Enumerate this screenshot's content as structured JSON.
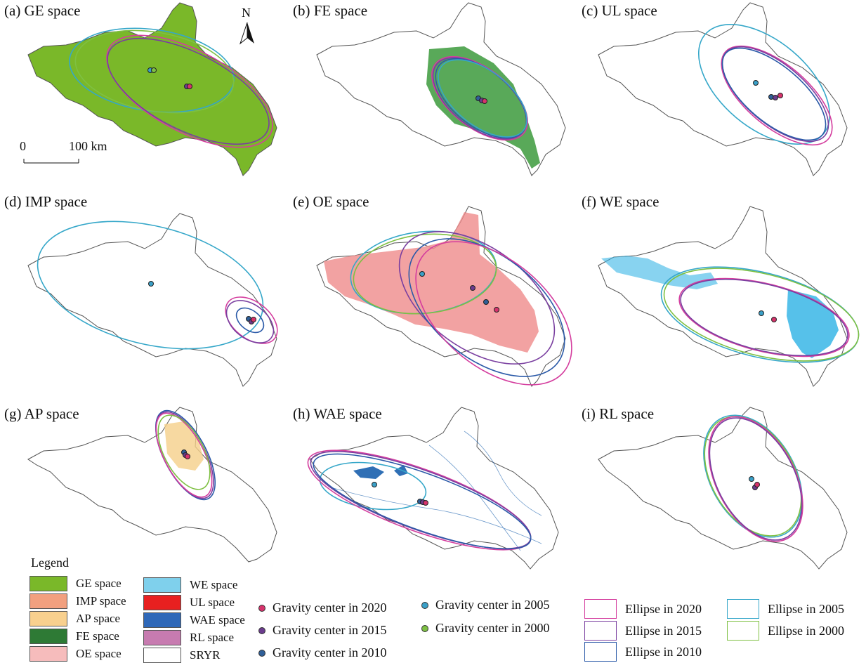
{
  "colors": {
    "e2020": "#d43d9e",
    "e2015": "#7a3fa0",
    "e2010": "#2b5aa8",
    "e2005": "#35a7c9",
    "e2000": "#7ec042",
    "g2020": "#d6336c",
    "g2015": "#6b3c8e",
    "g2010": "#2f5f98",
    "g2005": "#3aa0c8",
    "g2000": "#7dc043"
  },
  "panels": [
    {
      "title": "(a) GE space",
      "fill": "#7ab829"
    },
    {
      "title": "(b) FE space",
      "fill": "#3c9a3c"
    },
    {
      "title": "(c) UL space",
      "fill": "#333333"
    },
    {
      "title": "(d) IMP space",
      "fill": "#f0a58a"
    },
    {
      "title": "(e) OE space",
      "fill": "#ef8b8b"
    },
    {
      "title": "(f) WE space",
      "fill": "#38b6e6"
    },
    {
      "title": "(g) AP space",
      "fill": "#f5cf8a"
    },
    {
      "title": "(h) WAE space",
      "fill": "#2f6fb5"
    },
    {
      "title": "(i) RL space",
      "fill": "#c77bb0"
    }
  ],
  "map_extras": {
    "north": "N",
    "scale_zero": "0",
    "scale_label": "100 km"
  },
  "legend": {
    "title": "Legend",
    "items": [
      {
        "label": "GE space",
        "color": "#7ab829"
      },
      {
        "label": "IMP space",
        "color": "#f2a07f"
      },
      {
        "label": "AP space",
        "color": "#f8d08e"
      },
      {
        "label": "FE space",
        "color": "#2e7a35"
      },
      {
        "label": "OE space",
        "color": "#f6bcbc"
      },
      {
        "label": "WE space",
        "color": "#7fd0ec"
      },
      {
        "label": "UL space",
        "color": "#e82020"
      },
      {
        "label": "WAE space",
        "color": "#2f68b8"
      },
      {
        "label": "RL space",
        "color": "#c77bb0"
      },
      {
        "label": "SRYR",
        "color": "#ffffff"
      }
    ],
    "gravity": [
      {
        "label": "Gravity center in 2020",
        "color": "#d6336c"
      },
      {
        "label": "Gravity center in 2015",
        "color": "#6b3c8e"
      },
      {
        "label": "Gravity center in 2010",
        "color": "#2f5f98"
      },
      {
        "label": "Gravity center in 2005",
        "color": "#3aa0c8"
      },
      {
        "label": "Gravity center in 2000",
        "color": "#7dc043"
      }
    ],
    "ellipses": [
      {
        "label": "Ellipse in 2020",
        "color": "#d43d9e"
      },
      {
        "label": "Ellipse in 2015",
        "color": "#7a3fa0"
      },
      {
        "label": "Ellipse in 2010",
        "color": "#2b5aa8"
      },
      {
        "label": "Ellipse in 2005",
        "color": "#35a7c9"
      },
      {
        "label": "Ellipse in 2000",
        "color": "#7ec042"
      }
    ]
  }
}
